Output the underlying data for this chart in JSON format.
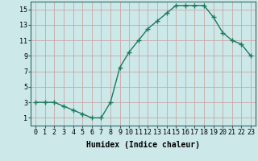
{
  "x": [
    0,
    1,
    2,
    3,
    4,
    5,
    6,
    7,
    8,
    9,
    10,
    11,
    12,
    13,
    14,
    15,
    16,
    17,
    18,
    19,
    20,
    21,
    22,
    23
  ],
  "y": [
    3,
    3,
    3,
    2.5,
    2,
    1.5,
    1,
    1,
    3,
    7.5,
    9.5,
    11,
    12.5,
    13.5,
    14.5,
    15.5,
    15.5,
    15.5,
    15.5,
    14,
    12,
    11,
    10.5,
    9
  ],
  "line_color": "#1a7a5e",
  "marker": "+",
  "bg_color": "#cce8e8",
  "grid_color_major": "#c8a8a8",
  "grid_color_minor": "#ffffff",
  "xlabel": "Humidex (Indice chaleur)",
  "xlim": [
    -0.5,
    23.5
  ],
  "ylim": [
    0,
    16
  ],
  "yticks": [
    1,
    3,
    5,
    7,
    9,
    11,
    13,
    15
  ],
  "xticks": [
    0,
    1,
    2,
    3,
    4,
    5,
    6,
    7,
    8,
    9,
    10,
    11,
    12,
    13,
    14,
    15,
    16,
    17,
    18,
    19,
    20,
    21,
    22,
    23
  ],
  "label_fontsize": 7,
  "tick_fontsize": 6,
  "marker_size": 4,
  "linewidth": 1.0
}
